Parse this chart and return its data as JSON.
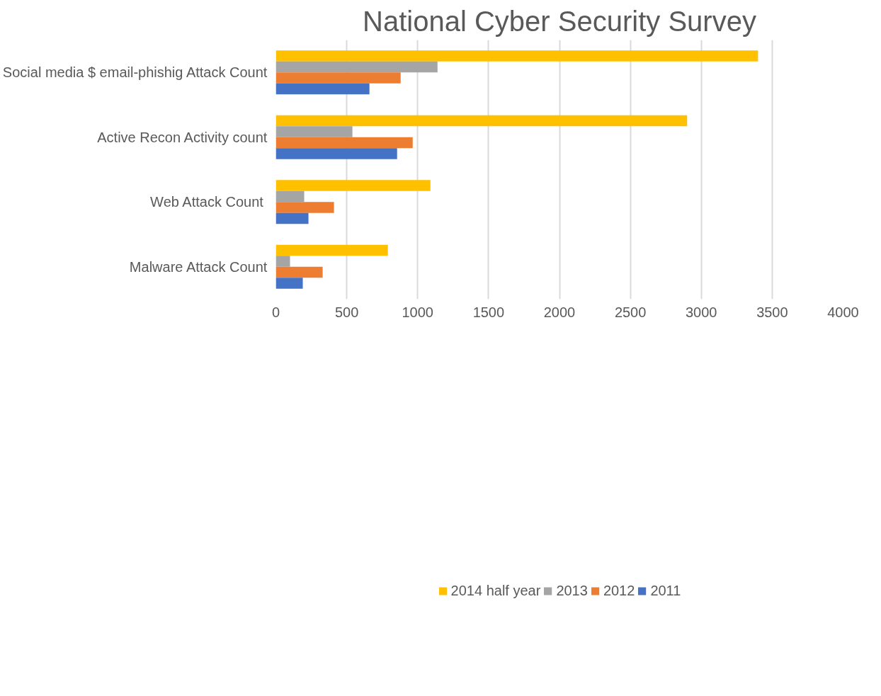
{
  "chart_data": {
    "type": "bar",
    "orientation": "horizontal",
    "title": "National Cyber Security Survey",
    "categories": [
      "Social media $ email-phishig Attack Count",
      "Active Recon Activity count",
      "Web  Attack Count",
      "Malware Attack Count"
    ],
    "series": [
      {
        "name": "2014 half year",
        "color": "#ffc000",
        "values": [
          3400,
          2900,
          1090,
          790
        ]
      },
      {
        "name": "2013",
        "color": "#a5a5a5",
        "values": [
          1140,
          540,
          200,
          100
        ]
      },
      {
        "name": "2012",
        "color": "#ed7d31",
        "values": [
          880,
          965,
          410,
          330
        ]
      },
      {
        "name": "2011",
        "color": "#4472c4",
        "values": [
          660,
          855,
          230,
          190
        ]
      }
    ],
    "xlim": [
      0,
      4000
    ],
    "xticks": [
      0,
      500,
      1000,
      1500,
      2000,
      2500,
      3000,
      3500,
      4000
    ],
    "grid": "x",
    "legend": "bottom"
  }
}
